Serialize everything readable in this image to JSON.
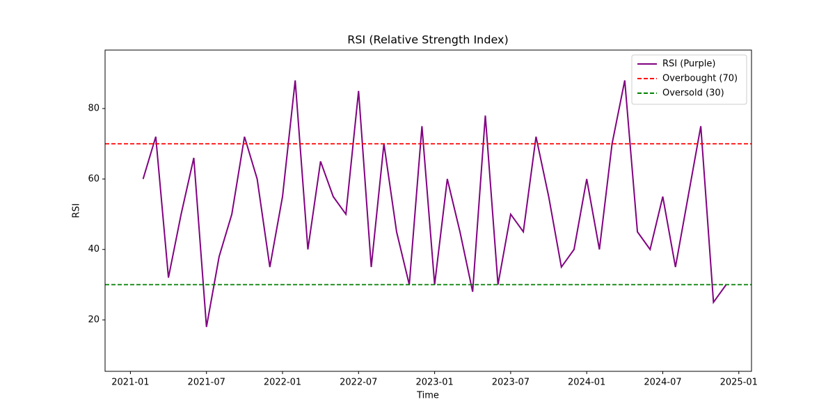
{
  "chart_data": {
    "type": "line",
    "title": "RSI (Relative Strength Index)",
    "x_label": "Time",
    "y_label": "RSI",
    "x": [
      "2021-02",
      "2021-03",
      "2021-04",
      "2021-05",
      "2021-06",
      "2021-07",
      "2021-08",
      "2021-09",
      "2021-10",
      "2021-11",
      "2021-12",
      "2022-01",
      "2022-02",
      "2022-03",
      "2022-04",
      "2022-05",
      "2022-06",
      "2022-07",
      "2022-08",
      "2022-09",
      "2022-10",
      "2022-11",
      "2022-12",
      "2023-01",
      "2023-02",
      "2023-03",
      "2023-04",
      "2023-05",
      "2023-06",
      "2023-07",
      "2023-08",
      "2023-09",
      "2023-10",
      "2023-11",
      "2023-12",
      "2024-01",
      "2024-02",
      "2024-03",
      "2024-04",
      "2024-05",
      "2024-06",
      "2024-07",
      "2024-08",
      "2024-09",
      "2024-10",
      "2024-11",
      "2024-12"
    ],
    "series": [
      {
        "name": "RSI (Purple)",
        "color": "#800080",
        "values": [
          60,
          72,
          32,
          50,
          66,
          18,
          38,
          50,
          72,
          60,
          35,
          55,
          88,
          40,
          65,
          55,
          50,
          85,
          35,
          70,
          45,
          30,
          75,
          30,
          60,
          45,
          28,
          78,
          30,
          50,
          45,
          72,
          55,
          35,
          40,
          60,
          40,
          70,
          88,
          45,
          40,
          55,
          35,
          55,
          75,
          25,
          30
        ]
      }
    ],
    "hlines": [
      {
        "name": "Overbought (70)",
        "value": 70,
        "color": "#ff0000"
      },
      {
        "name": "Oversold (30)",
        "value": 30,
        "color": "#008000"
      }
    ],
    "xlim": [
      "2020-11",
      "2025-02"
    ],
    "xticks": [
      "2021-01",
      "2021-07",
      "2022-01",
      "2022-07",
      "2023-01",
      "2023-07",
      "2024-01",
      "2024-07",
      "2025-01"
    ],
    "ylim": [
      5.4,
      96.6
    ],
    "yticks": [
      20,
      40,
      60,
      80
    ],
    "legend": "upper right"
  }
}
